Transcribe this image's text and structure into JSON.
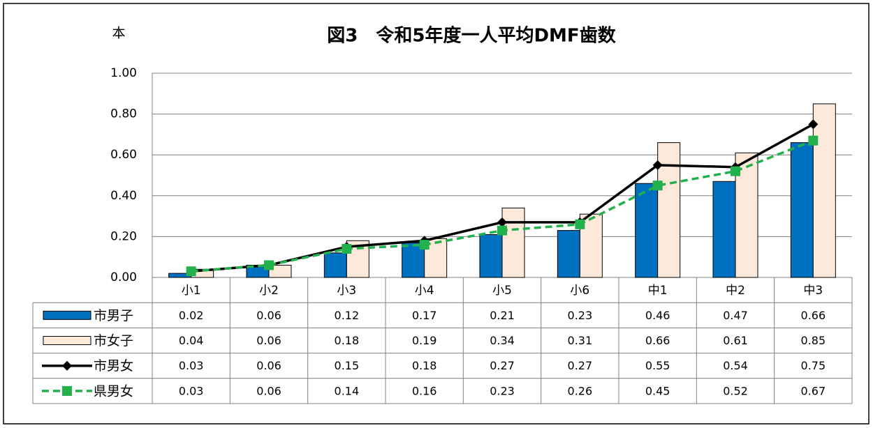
{
  "chart_data": {
    "type": "bar",
    "title": "図3　令和5年度一人平均DMF歯数",
    "y_axis_label": "本",
    "categories": [
      "小1",
      "小2",
      "小3",
      "小4",
      "小5",
      "小6",
      "中1",
      "中2",
      "中3"
    ],
    "series": [
      {
        "name": "市男子",
        "type": "bar",
        "color": "#0070c0",
        "values": [
          0.02,
          0.06,
          0.12,
          0.17,
          0.21,
          0.23,
          0.46,
          0.47,
          0.66
        ]
      },
      {
        "name": "市女子",
        "type": "bar",
        "color": "#fde9d9",
        "values": [
          0.04,
          0.06,
          0.18,
          0.19,
          0.34,
          0.31,
          0.66,
          0.61,
          0.85
        ]
      },
      {
        "name": "市男女",
        "type": "line",
        "color": "#000000",
        "marker": "diamond",
        "dashed": false,
        "values": [
          0.03,
          0.06,
          0.15,
          0.18,
          0.27,
          0.27,
          0.55,
          0.54,
          0.75
        ]
      },
      {
        "name": "県男女",
        "type": "line",
        "color": "#22b14c",
        "marker": "square",
        "dashed": true,
        "values": [
          0.03,
          0.06,
          0.14,
          0.16,
          0.23,
          0.26,
          0.45,
          0.52,
          0.67
        ]
      }
    ],
    "ylim": [
      0,
      1
    ],
    "yticks": [
      {
        "value": 0,
        "label": "0.00"
      },
      {
        "value": 0.2,
        "label": "0.20"
      },
      {
        "value": 0.4,
        "label": "0.40"
      },
      {
        "value": 0.6,
        "label": "0.60"
      },
      {
        "value": 0.8,
        "label": "0.80"
      },
      {
        "value": 1,
        "label": "1.00"
      }
    ],
    "grid": true,
    "data_table": true
  }
}
